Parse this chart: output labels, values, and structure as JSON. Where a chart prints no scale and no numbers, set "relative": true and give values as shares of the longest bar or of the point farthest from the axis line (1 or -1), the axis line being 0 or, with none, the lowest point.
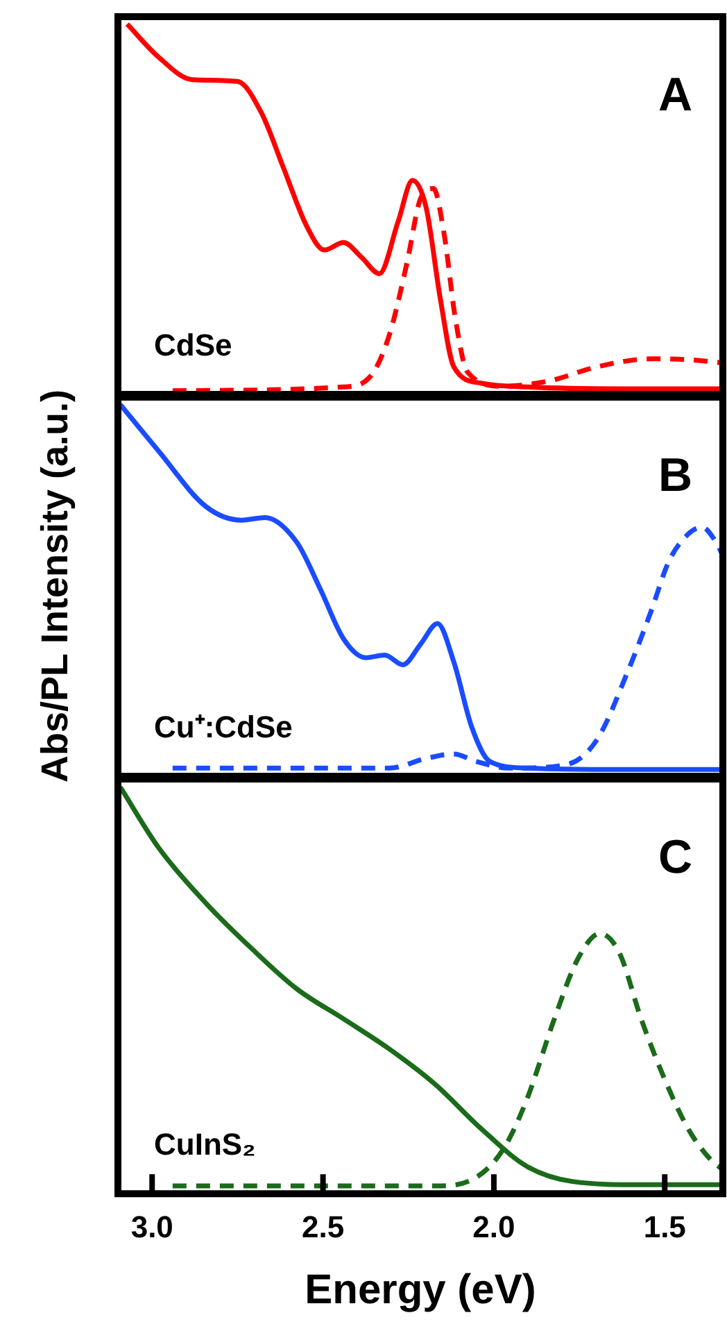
{
  "chart_data": [
    {
      "type": "line",
      "relative": true,
      "xlim": [
        3.1,
        1.33
      ],
      "tick_labels": false,
      "annotations": [
        "A",
        "CdSe"
      ],
      "series": [
        {
          "color": "#ff0000",
          "line_style": "solid",
          "x": [
            3.073,
            2.98,
            2.883,
            2.75,
            2.68,
            2.617,
            2.548,
            2.496,
            2.44,
            2.387,
            2.335,
            2.28,
            2.238,
            2.198,
            2.157,
            2.117,
            2.036,
            1.9,
            1.63,
            1.33
          ],
          "values": [
            1.0,
            0.91,
            0.85,
            0.845,
            0.76,
            0.615,
            0.455,
            0.39,
            0.41,
            0.37,
            0.326,
            0.467,
            0.578,
            0.504,
            0.26,
            0.074,
            0.03,
            0.02,
            0.015,
            0.015
          ]
        },
        {
          "color": "#ff0000",
          "line_style": "dashed",
          "x": [
            2.94,
            2.44,
            2.36,
            2.306,
            2.254,
            2.214,
            2.177,
            2.145,
            2.113,
            2.077,
            1.972,
            1.835,
            1.7,
            1.54,
            1.42,
            1.33
          ],
          "values": [
            0.01,
            0.02,
            0.05,
            0.16,
            0.356,
            0.53,
            0.556,
            0.43,
            0.207,
            0.06,
            0.022,
            0.037,
            0.074,
            0.096,
            0.093,
            0.085
          ]
        }
      ]
    },
    {
      "type": "line",
      "relative": true,
      "xlim": [
        3.1,
        1.33
      ],
      "tick_labels": false,
      "ylabel": "Abs/PL Intensity (a.u.)",
      "annotations": [
        "B",
        "Cu⁺:CdSe"
      ],
      "series": [
        {
          "color": "#1a4cff",
          "line_style": "solid",
          "x": [
            3.093,
            2.98,
            2.843,
            2.738,
            2.67,
            2.577,
            2.508,
            2.44,
            2.375,
            2.319,
            2.266,
            2.214,
            2.165,
            2.117,
            2.065,
            2.012,
            1.903,
            1.633,
            1.33
          ],
          "values": [
            1.0,
            0.874,
            0.726,
            0.689,
            0.696,
            0.63,
            0.504,
            0.37,
            0.319,
            0.326,
            0.3,
            0.356,
            0.411,
            0.307,
            0.133,
            0.04,
            0.022,
            0.018,
            0.018
          ]
        },
        {
          "color": "#1a4cff",
          "line_style": "dashed",
          "x": [
            2.94,
            2.306,
            2.198,
            2.117,
            2.052,
            1.956,
            1.794,
            1.7,
            1.609,
            1.54,
            1.488,
            1.431,
            1.391,
            1.35,
            1.33
          ],
          "values": [
            0.022,
            0.022,
            0.048,
            0.06,
            0.04,
            0.022,
            0.03,
            0.096,
            0.28,
            0.444,
            0.578,
            0.652,
            0.67,
            0.63,
            0.593
          ]
        }
      ]
    },
    {
      "type": "line",
      "relative": true,
      "xlim": [
        3.1,
        1.33
      ],
      "xticks": [
        {
          "value": 3,
          "label": "3.0"
        },
        2.5,
        {
          "value": 2,
          "label": "2.0"
        },
        1.5
      ],
      "tick_labels": "x",
      "xlabel": "Energy (eV)",
      "annotations": [
        "C",
        "CuInS₂"
      ],
      "series": [
        {
          "color": "#1a6b1a",
          "line_style": "solid",
          "x": [
            3.093,
            2.98,
            2.843,
            2.71,
            2.577,
            2.44,
            2.306,
            2.173,
            2.036,
            1.903,
            1.77,
            1.569,
            1.33
          ],
          "values": [
            1.0,
            0.85,
            0.715,
            0.604,
            0.504,
            0.43,
            0.356,
            0.27,
            0.159,
            0.067,
            0.03,
            0.022,
            0.022
          ]
        },
        {
          "color": "#1a6b1a",
          "line_style": "dashed",
          "x": [
            2.94,
            2.173,
            2.052,
            1.972,
            1.903,
            1.823,
            1.754,
            1.69,
            1.633,
            1.569,
            1.5,
            1.431,
            1.367,
            1.33
          ],
          "values": [
            0.019,
            0.019,
            0.04,
            0.11,
            0.233,
            0.43,
            0.578,
            0.64,
            0.593,
            0.43,
            0.281,
            0.159,
            0.085,
            0.059
          ]
        }
      ]
    }
  ]
}
